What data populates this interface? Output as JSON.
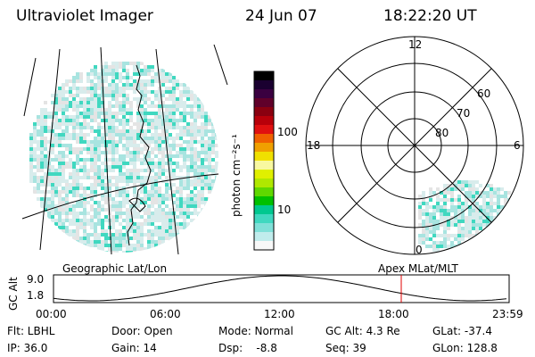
{
  "header": {
    "instrument": "Ultraviolet Imager",
    "date": "24 Jun 07",
    "time": "18:22:20 UT"
  },
  "colorbar": {
    "unit_label": "photon cm⁻²s⁻¹",
    "ticks": [
      "100",
      "10"
    ],
    "colors": [
      "#000000",
      "#1a0030",
      "#3a0040",
      "#60002a",
      "#8a0010",
      "#b8000a",
      "#e01010",
      "#f06000",
      "#f0a000",
      "#f0e000",
      "#f8f8a0",
      "#e0f000",
      "#b0e800",
      "#60d800",
      "#00c000",
      "#00c890",
      "#40d8c0",
      "#80e0d8",
      "#c0ecec",
      "#f8f8f8"
    ]
  },
  "polar": {
    "mlt_labels": {
      "top": "12",
      "left": "18",
      "right": "6",
      "bottom": "0"
    },
    "lat_labels": [
      "60",
      "70",
      "80"
    ]
  },
  "timeline": {
    "left_label": "Geographic Lat/Lon",
    "right_label": "Apex  MLat/MLT",
    "axis_title": "GC Alt",
    "y_ticks": [
      "9.0",
      "1.8"
    ],
    "x_ticks": [
      "00:00",
      "06:00",
      "12:00",
      "18:00",
      "23:59"
    ],
    "marker_color": "#e00000"
  },
  "info": {
    "row1": [
      "Flt: LBHL",
      "Door: Open",
      "Mode: Normal",
      "GC Alt: 4.3 Re",
      "GLat: -37.4"
    ],
    "row2": [
      "IP: 36.0",
      "Gain: 14",
      "Dsp:    -8.8",
      "Seq: 39",
      "GLon: 128.8"
    ]
  },
  "palette": {
    "speckle_a": "#d8ecec",
    "speckle_b": "#a8e4e0",
    "speckle_c": "#40d8c0",
    "speckle_d": "#e4e4e4"
  }
}
